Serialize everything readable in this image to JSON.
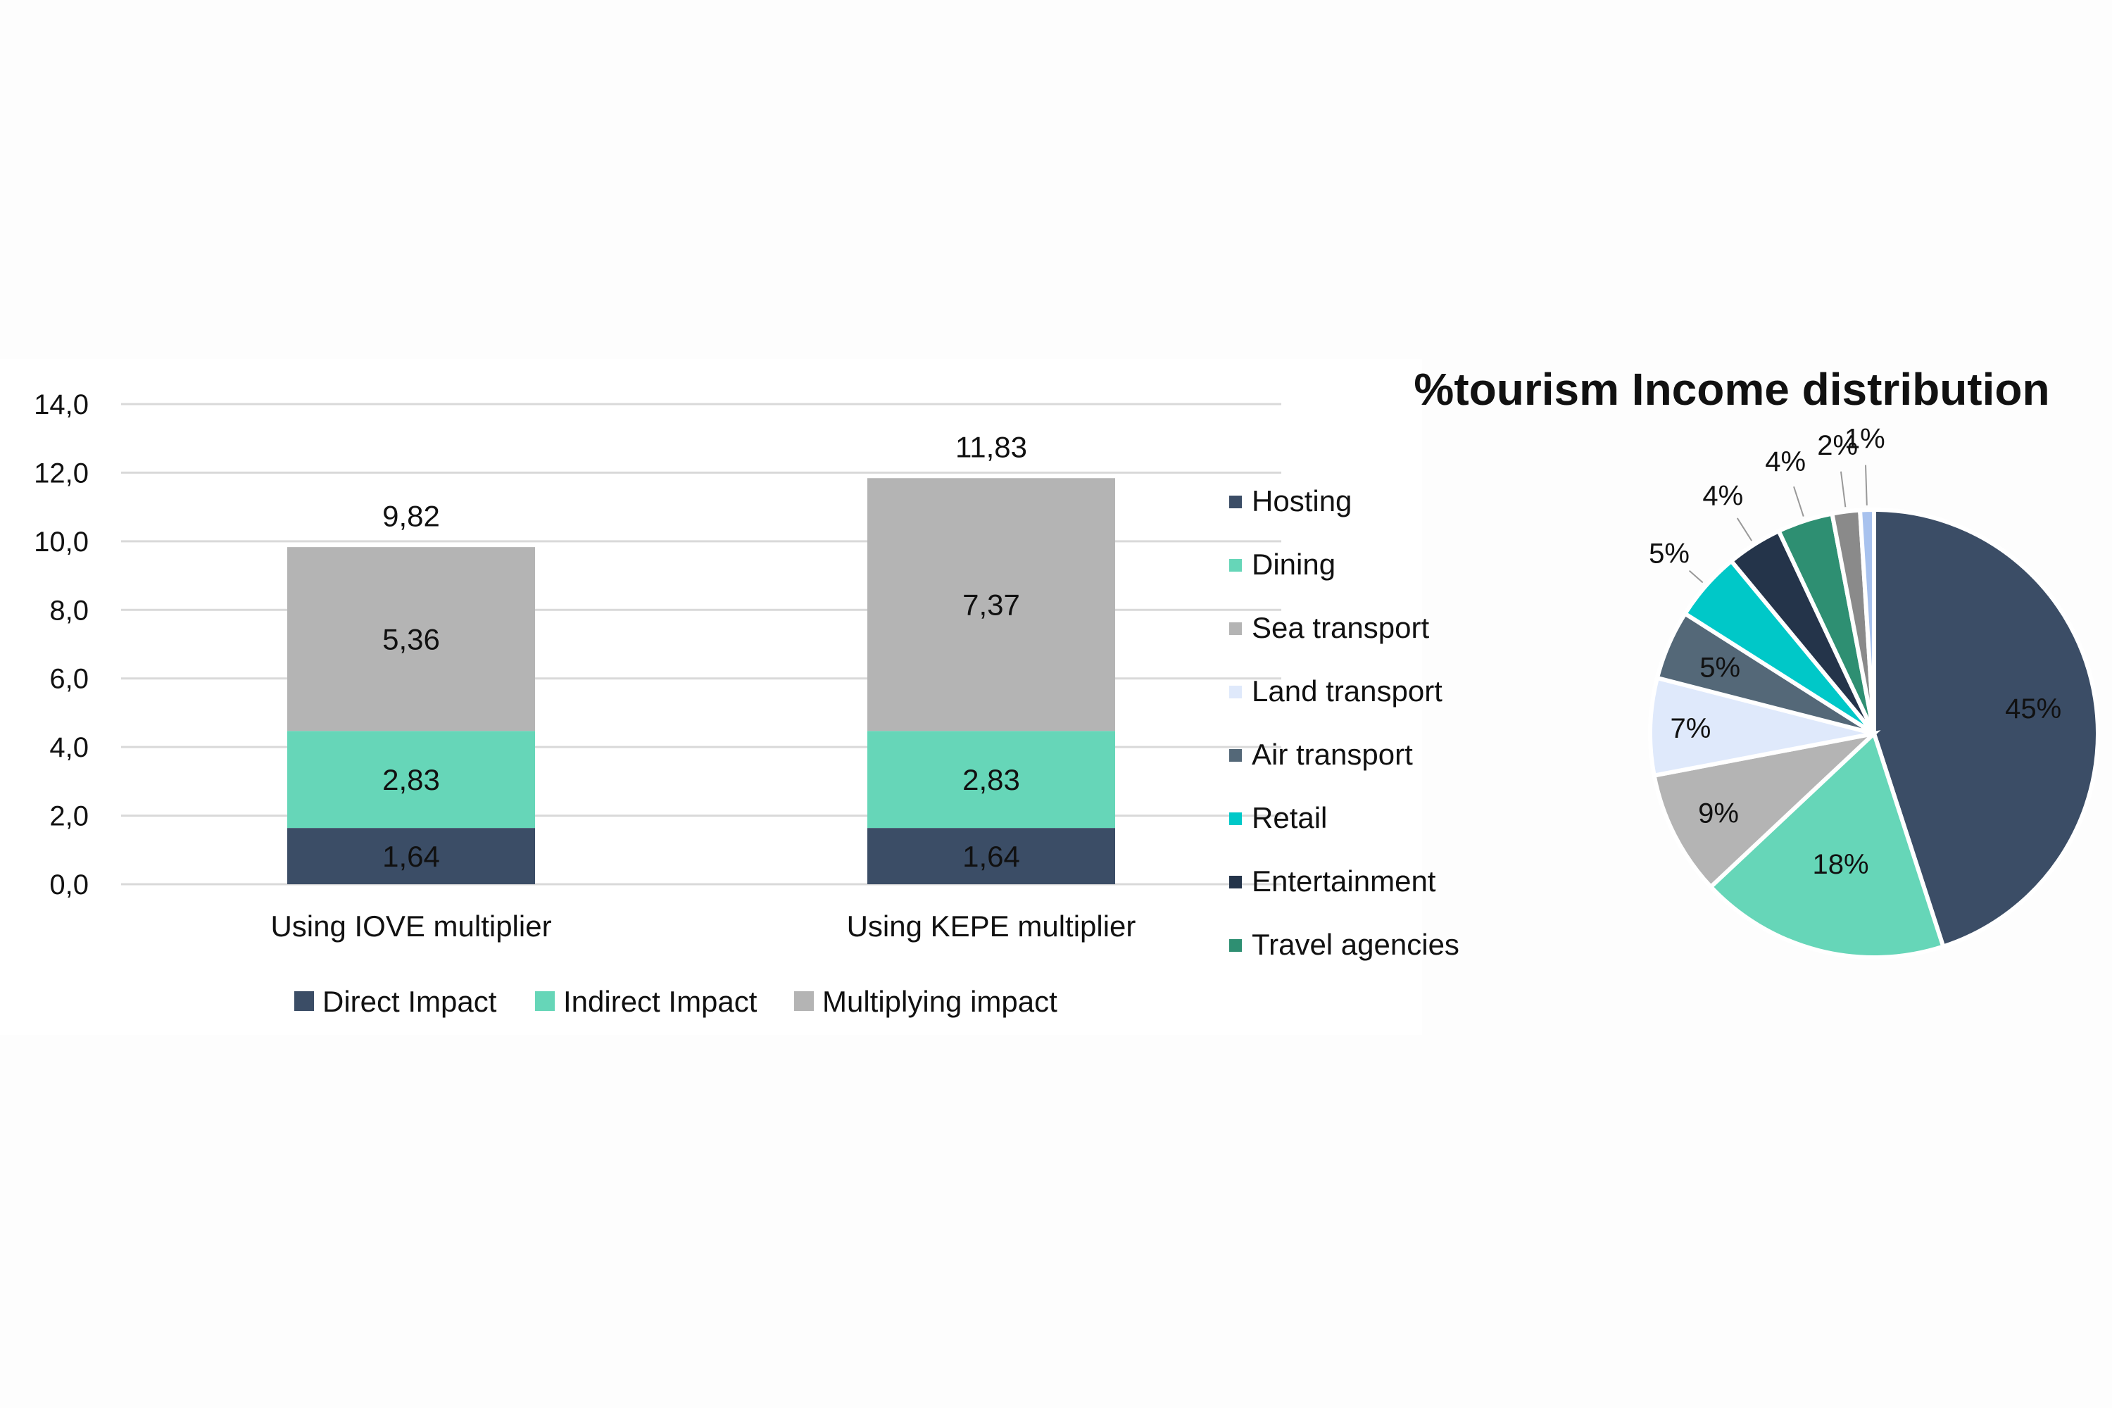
{
  "chart_data": [
    {
      "type": "bar",
      "stacked": true,
      "categories": [
        "Using IOVE multiplier",
        "Using KEPE multiplier"
      ],
      "series": [
        {
          "name": "Direct Impact",
          "values": [
            1.64,
            1.64
          ],
          "labels": [
            "1,64",
            "1,64"
          ],
          "color": "#3b4d66"
        },
        {
          "name": "Indirect Impact",
          "values": [
            2.83,
            2.83
          ],
          "labels": [
            "2,83",
            "2,83"
          ],
          "color": "#66d6b8"
        },
        {
          "name": "Multiplying impact",
          "values": [
            5.36,
            7.37
          ],
          "labels": [
            "5,36",
            "7,37"
          ],
          "color": "#b4b4b4"
        }
      ],
      "totals": [
        9.82,
        11.83
      ],
      "total_labels": [
        "9,82",
        "11,83"
      ],
      "yticks": [
        0,
        2,
        4,
        6,
        8,
        10,
        12,
        14
      ],
      "ytick_labels": [
        "0,0",
        "2,0",
        "4,0",
        "6,0",
        "8,0",
        "10,0",
        "12,0",
        "14,0"
      ],
      "ylim": [
        0,
        14
      ],
      "grid": true,
      "legend": "bottom"
    },
    {
      "type": "pie",
      "title": "%tourism Income distribution",
      "slices": [
        {
          "name": "Hosting",
          "value": 45,
          "label": "45%",
          "color": "#3b4d66"
        },
        {
          "name": "Dining",
          "value": 18,
          "label": "18%",
          "color": "#66d6b8"
        },
        {
          "name": "Sea transport",
          "value": 9,
          "label": "9%",
          "color": "#b4b4b4"
        },
        {
          "name": "Land transport",
          "value": 7,
          "label": "7%",
          "color": "#dfe9fb"
        },
        {
          "name": "Air transport",
          "value": 5,
          "label": "5%",
          "color": "#546878"
        },
        {
          "name": "Retail",
          "value": 5,
          "label": "5%",
          "color": "#00c8c8"
        },
        {
          "name": "Entertainment",
          "value": 4,
          "label": "4%",
          "color": "#24344a"
        },
        {
          "name": "Travel agencies",
          "value": 4,
          "label": "4%",
          "color": "#2e8f72"
        },
        {
          "name": "",
          "value": 2,
          "label": "2%",
          "color": "#8a8a8a"
        },
        {
          "name": "",
          "value": 1,
          "label": "1%",
          "color": "#a8c2ee"
        }
      ],
      "legend": "left"
    }
  ]
}
